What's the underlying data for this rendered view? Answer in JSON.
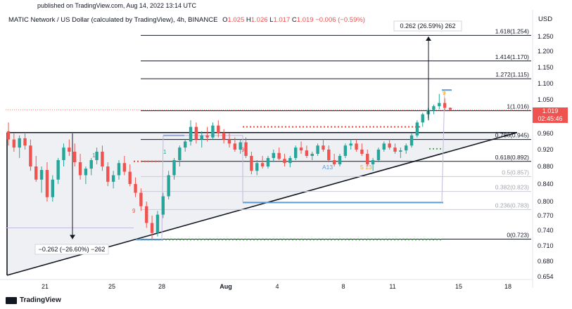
{
  "header": {
    "published": "published on TradingView.com, Aug 14, 2022 13:14 UTC",
    "symbol": "MATIC Network / US Dollar (calculated by TradingView), 4h, BINANCE",
    "o_label": "O",
    "o_value": "1.025",
    "h_label": "H",
    "h_value": "1.026",
    "l_label": "L",
    "l_value": "1.017",
    "c_label": "C",
    "c_value": "1.019",
    "change": "−0.006 (−0.59%)",
    "currency": "USD"
  },
  "footer": {
    "brand": "TradingView"
  },
  "price_tag": {
    "price": "1.019",
    "countdown": "02:45:46"
  },
  "annotations": {
    "up_move": "0.262 (26.59%) 262",
    "down_move": "−0.262 (−26.60%) −262",
    "a13": "A13",
    "s13": "5 13",
    "nine_a": "9",
    "nine_b": "9",
    "nine_c": "9",
    "one_a": "1",
    "one_b": "1"
  },
  "colors": {
    "up": "#26a69a",
    "down": "#ef5350",
    "fib": "#131722",
    "fib_faint": "#b2b5be",
    "blue": "#5b9bd5",
    "red_dotted": "#f44336",
    "green_dotted": "#4caf50",
    "triangle_fill": "#eef0f3"
  },
  "chart_data": {
    "type": "candlestick",
    "y_axis_ticks": [
      "1.250",
      "1.200",
      "1.150",
      "1.100",
      "1.050",
      "1.000",
      "0.960",
      "0.920",
      "0.880",
      "0.840",
      "0.800",
      "0.770",
      "0.740",
      "0.710",
      "0.680",
      "0.654"
    ],
    "x_axis_ticks": [
      "21",
      "25",
      "28",
      "Aug",
      "4",
      "8",
      "11",
      "15",
      "18"
    ],
    "fib_levels": [
      {
        "label": "1.618(1.254)",
        "value": 1.254
      },
      {
        "label": "1.414(1.170)",
        "value": 1.17
      },
      {
        "label": "1.272(1.115)",
        "value": 1.115
      },
      {
        "label": "1(1.016)",
        "value": 1.016
      },
      {
        "label": "0.786(0.945)",
        "value": 0.945
      },
      {
        "label": "0.618(0.892)",
        "value": 0.892
      },
      {
        "label": "0.5(0.857)",
        "value": 0.857
      },
      {
        "label": "0.382(0.823)",
        "value": 0.823
      },
      {
        "label": "0.236(0.783)",
        "value": 0.783
      },
      {
        "label": "0(0.723)",
        "value": 0.723
      }
    ],
    "last_price": 1.019,
    "candles_approx": [
      {
        "o": 0.965,
        "h": 0.985,
        "l": 0.93,
        "c": 0.945
      },
      {
        "o": 0.945,
        "h": 0.96,
        "l": 0.915,
        "c": 0.925
      },
      {
        "o": 0.925,
        "h": 0.955,
        "l": 0.9,
        "c": 0.948
      },
      {
        "o": 0.948,
        "h": 0.962,
        "l": 0.92,
        "c": 0.93
      },
      {
        "o": 0.93,
        "h": 0.945,
        "l": 0.87,
        "c": 0.88
      },
      {
        "o": 0.88,
        "h": 0.905,
        "l": 0.845,
        "c": 0.85
      },
      {
        "o": 0.85,
        "h": 0.88,
        "l": 0.82,
        "c": 0.872
      },
      {
        "o": 0.872,
        "h": 0.89,
        "l": 0.8,
        "c": 0.81
      },
      {
        "o": 0.81,
        "h": 0.86,
        "l": 0.8,
        "c": 0.85
      },
      {
        "o": 0.85,
        "h": 0.9,
        "l": 0.84,
        "c": 0.895
      },
      {
        "o": 0.895,
        "h": 0.935,
        "l": 0.88,
        "c": 0.925
      },
      {
        "o": 0.925,
        "h": 0.945,
        "l": 0.905,
        "c": 0.915
      },
      {
        "o": 0.915,
        "h": 0.935,
        "l": 0.88,
        "c": 0.89
      },
      {
        "o": 0.89,
        "h": 0.91,
        "l": 0.85,
        "c": 0.86
      },
      {
        "o": 0.86,
        "h": 0.88,
        "l": 0.84,
        "c": 0.875
      },
      {
        "o": 0.875,
        "h": 0.9,
        "l": 0.86,
        "c": 0.895
      },
      {
        "o": 0.895,
        "h": 0.925,
        "l": 0.885,
        "c": 0.915
      },
      {
        "o": 0.915,
        "h": 0.93,
        "l": 0.87,
        "c": 0.88
      },
      {
        "o": 0.88,
        "h": 0.89,
        "l": 0.835,
        "c": 0.845
      },
      {
        "o": 0.845,
        "h": 0.87,
        "l": 0.83,
        "c": 0.86
      },
      {
        "o": 0.86,
        "h": 0.895,
        "l": 0.85,
        "c": 0.888
      },
      {
        "o": 0.888,
        "h": 0.905,
        "l": 0.86,
        "c": 0.868
      },
      {
        "o": 0.868,
        "h": 0.885,
        "l": 0.835,
        "c": 0.84
      },
      {
        "o": 0.84,
        "h": 0.855,
        "l": 0.81,
        "c": 0.82
      },
      {
        "o": 0.82,
        "h": 0.83,
        "l": 0.78,
        "c": 0.79
      },
      {
        "o": 0.79,
        "h": 0.8,
        "l": 0.745,
        "c": 0.755
      },
      {
        "o": 0.755,
        "h": 0.77,
        "l": 0.723,
        "c": 0.735
      },
      {
        "o": 0.735,
        "h": 0.78,
        "l": 0.728,
        "c": 0.772
      },
      {
        "o": 0.772,
        "h": 0.82,
        "l": 0.765,
        "c": 0.812
      },
      {
        "o": 0.812,
        "h": 0.87,
        "l": 0.805,
        "c": 0.86
      },
      {
        "o": 0.86,
        "h": 0.9,
        "l": 0.85,
        "c": 0.895
      },
      {
        "o": 0.895,
        "h": 0.93,
        "l": 0.88,
        "c": 0.925
      },
      {
        "o": 0.925,
        "h": 0.945,
        "l": 0.915,
        "c": 0.94
      },
      {
        "o": 0.94,
        "h": 0.99,
        "l": 0.93,
        "c": 0.975
      },
      {
        "o": 0.975,
        "h": 0.985,
        "l": 0.935,
        "c": 0.945
      },
      {
        "o": 0.945,
        "h": 0.965,
        "l": 0.925,
        "c": 0.955
      },
      {
        "o": 0.955,
        "h": 0.975,
        "l": 0.94,
        "c": 0.95
      },
      {
        "o": 0.95,
        "h": 0.985,
        "l": 0.945,
        "c": 0.978
      },
      {
        "o": 0.978,
        "h": 0.99,
        "l": 0.95,
        "c": 0.96
      },
      {
        "o": 0.96,
        "h": 0.97,
        "l": 0.935,
        "c": 0.945
      },
      {
        "o": 0.945,
        "h": 0.96,
        "l": 0.925,
        "c": 0.935
      },
      {
        "o": 0.935,
        "h": 0.95,
        "l": 0.915,
        "c": 0.92
      },
      {
        "o": 0.92,
        "h": 0.945,
        "l": 0.91,
        "c": 0.938
      },
      {
        "o": 0.938,
        "h": 0.95,
        "l": 0.9,
        "c": 0.905
      },
      {
        "o": 0.905,
        "h": 0.915,
        "l": 0.862,
        "c": 0.87
      },
      {
        "o": 0.87,
        "h": 0.895,
        "l": 0.86,
        "c": 0.888
      },
      {
        "o": 0.888,
        "h": 0.905,
        "l": 0.875,
        "c": 0.88
      },
      {
        "o": 0.88,
        "h": 0.905,
        "l": 0.875,
        "c": 0.9
      },
      {
        "o": 0.9,
        "h": 0.92,
        "l": 0.89,
        "c": 0.912
      },
      {
        "o": 0.912,
        "h": 0.925,
        "l": 0.895,
        "c": 0.898
      },
      {
        "o": 0.898,
        "h": 0.91,
        "l": 0.88,
        "c": 0.888
      },
      {
        "o": 0.888,
        "h": 0.905,
        "l": 0.878,
        "c": 0.9
      },
      {
        "o": 0.9,
        "h": 0.93,
        "l": 0.895,
        "c": 0.925
      },
      {
        "o": 0.925,
        "h": 0.94,
        "l": 0.91,
        "c": 0.918
      },
      {
        "o": 0.918,
        "h": 0.93,
        "l": 0.9,
        "c": 0.905
      },
      {
        "o": 0.905,
        "h": 0.915,
        "l": 0.895,
        "c": 0.91
      },
      {
        "o": 0.91,
        "h": 0.935,
        "l": 0.905,
        "c": 0.93
      },
      {
        "o": 0.93,
        "h": 0.945,
        "l": 0.915,
        "c": 0.92
      },
      {
        "o": 0.92,
        "h": 0.93,
        "l": 0.89,
        "c": 0.895
      },
      {
        "o": 0.895,
        "h": 0.91,
        "l": 0.88,
        "c": 0.885
      },
      {
        "o": 0.885,
        "h": 0.91,
        "l": 0.88,
        "c": 0.905
      },
      {
        "o": 0.905,
        "h": 0.935,
        "l": 0.9,
        "c": 0.93
      },
      {
        "o": 0.93,
        "h": 0.945,
        "l": 0.92,
        "c": 0.935
      },
      {
        "o": 0.935,
        "h": 0.945,
        "l": 0.915,
        "c": 0.92
      },
      {
        "o": 0.92,
        "h": 0.935,
        "l": 0.905,
        "c": 0.91
      },
      {
        "o": 0.91,
        "h": 0.92,
        "l": 0.88,
        "c": 0.885
      },
      {
        "o": 0.885,
        "h": 0.9,
        "l": 0.87,
        "c": 0.895
      },
      {
        "o": 0.895,
        "h": 0.925,
        "l": 0.89,
        "c": 0.92
      },
      {
        "o": 0.92,
        "h": 0.94,
        "l": 0.915,
        "c": 0.935
      },
      {
        "o": 0.935,
        "h": 0.945,
        "l": 0.92,
        "c": 0.925
      },
      {
        "o": 0.925,
        "h": 0.935,
        "l": 0.91,
        "c": 0.915
      },
      {
        "o": 0.915,
        "h": 0.925,
        "l": 0.9,
        "c": 0.918
      },
      {
        "o": 0.918,
        "h": 0.935,
        "l": 0.91,
        "c": 0.93
      },
      {
        "o": 0.93,
        "h": 0.96,
        "l": 0.925,
        "c": 0.955
      },
      {
        "o": 0.955,
        "h": 0.99,
        "l": 0.95,
        "c": 0.985
      },
      {
        "o": 0.985,
        "h": 1.01,
        "l": 0.975,
        "c": 1.005
      },
      {
        "o": 1.005,
        "h": 1.025,
        "l": 0.995,
        "c": 1.018
      },
      {
        "o": 1.018,
        "h": 1.035,
        "l": 1.005,
        "c": 1.03
      },
      {
        "o": 1.03,
        "h": 1.068,
        "l": 1.02,
        "c": 1.04
      },
      {
        "o": 1.04,
        "h": 1.055,
        "l": 1.015,
        "c": 1.025
      },
      {
        "o": 1.025,
        "h": 1.026,
        "l": 1.017,
        "c": 1.019
      }
    ]
  }
}
